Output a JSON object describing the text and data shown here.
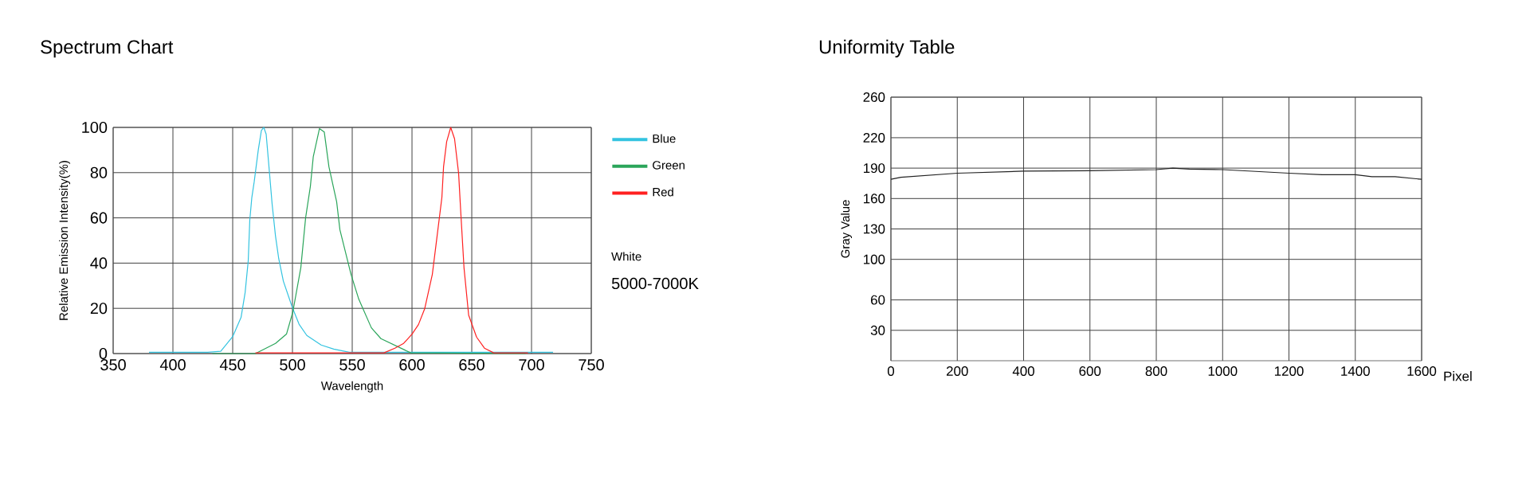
{
  "chart_data": [
    {
      "type": "line",
      "title": "Spectrum Chart",
      "xlabel": "Wavelength",
      "ylabel": "Relative Emission Intensity(%)",
      "xlim": [
        350,
        750
      ],
      "ylim": [
        0,
        100
      ],
      "xticks": [
        350,
        400,
        450,
        500,
        550,
        600,
        650,
        700,
        750
      ],
      "yticks": [
        0,
        20,
        40,
        60,
        80,
        100
      ],
      "grid": true,
      "legend": "right",
      "marker": "none",
      "annotations": [
        "White",
        "5000-7000K"
      ],
      "series": [
        {
          "name": "Blue",
          "color": "#33c3e0",
          "x": [
            380,
            429,
            440,
            450,
            457,
            460.4,
            463,
            464.3,
            466,
            468,
            471.4,
            474,
            476,
            478,
            480.6,
            483,
            485.8,
            488.5,
            492.4,
            499.8,
            505.5,
            512,
            524,
            534.5,
            547.6,
            718
          ],
          "values": [
            0.6,
            0.6,
            1,
            7.5,
            16,
            27,
            41,
            59,
            69,
            76,
            90,
            98.6,
            100,
            97,
            81,
            66,
            52,
            42,
            32,
            20.5,
            13,
            8,
            3.8,
            2,
            0.6,
            0.6
          ]
        },
        {
          "name": "Green",
          "color": "#2aa55a",
          "x": [
            433,
            469,
            485.8,
            495,
            500.3,
            507,
            511,
            515,
            517.4,
            522.6,
            526.6,
            530.5,
            537,
            539.7,
            549,
            555.5,
            566,
            574,
            599,
            695
          ],
          "values": [
            0,
            0,
            4.5,
            8.6,
            18.4,
            38,
            60,
            74,
            87,
            99.5,
            98,
            82.6,
            67,
            54.7,
            35,
            24,
            11.4,
            6.6,
            0.3,
            0
          ]
        },
        {
          "name": "Red",
          "color": "#ff2020",
          "x": [
            469,
            576.5,
            585.7,
            593,
            600,
            605.4,
            610.6,
            617,
            621,
            625,
            626.4,
            629,
            632.4,
            635.6,
            639,
            640.9,
            643.5,
            647.4,
            654,
            660.6,
            668.4,
            697
          ],
          "values": [
            0.3,
            0.3,
            2.4,
            4.5,
            8.6,
            12.8,
            19.8,
            35,
            52,
            69,
            82.6,
            93.7,
            100,
            95,
            79.7,
            61.6,
            38,
            17,
            7.3,
            2.4,
            0.3,
            0.3
          ]
        }
      ]
    },
    {
      "type": "line",
      "title": "Uniformity Table",
      "xlabel": "Pixel",
      "ylabel": "Gray Value",
      "xlim": [
        0,
        1600
      ],
      "ylim": [
        0,
        260
      ],
      "xticks": [
        0,
        200,
        400,
        600,
        800,
        1000,
        1200,
        1400,
        1600
      ],
      "yticks": [
        30,
        60,
        100,
        130,
        160,
        190,
        220,
        260
      ],
      "grid": true,
      "marker": "none",
      "series": [
        {
          "color": "#222222",
          "x": [
            0,
            30,
            200,
            400,
            600,
            800,
            850,
            900,
            1000,
            1200,
            1300,
            1400,
            1450,
            1520,
            1600
          ],
          "values": [
            179,
            181,
            185,
            187,
            187.5,
            188.5,
            190,
            189,
            188.5,
            185,
            183.5,
            183.5,
            181.5,
            181.5,
            179
          ]
        }
      ]
    }
  ]
}
